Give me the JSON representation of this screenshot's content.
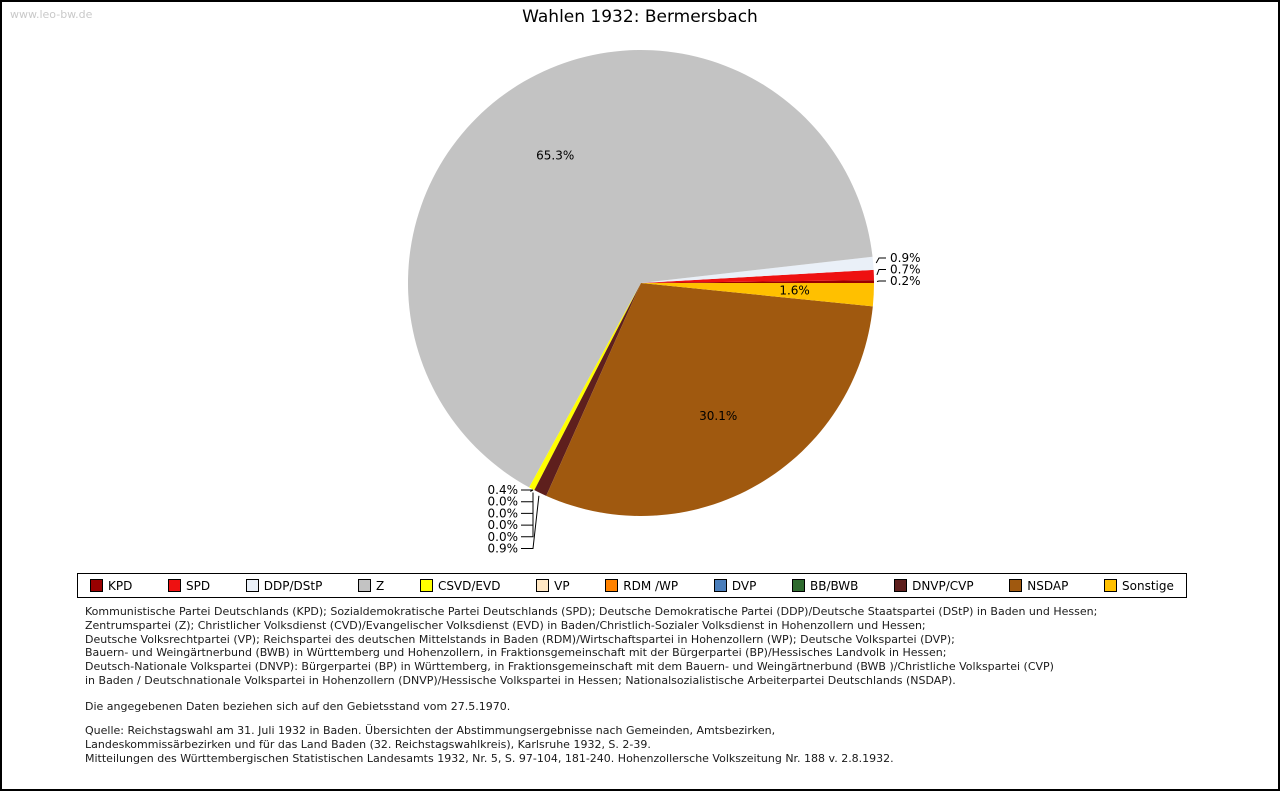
{
  "page": {
    "watermark": "www.leo-bw.de"
  },
  "chart_data": {
    "type": "pie",
    "title": "Wahlen 1932: Bermersbach",
    "unit": "%",
    "start_angle_deg": 0,
    "direction": "counterclockwise",
    "legend_position": "bottom",
    "slices": [
      {
        "key": "kpd",
        "label": "KPD",
        "value": 0.2,
        "color": "#990000",
        "callout": "right"
      },
      {
        "key": "spd",
        "label": "SPD",
        "value": 0.7,
        "color": "#ee1111",
        "callout": "right"
      },
      {
        "key": "ddp-dstp",
        "label": "DDP/DStP",
        "value": 0.9,
        "color": "#eaf0f8",
        "callout": "right"
      },
      {
        "key": "z",
        "label": "Z",
        "value": 65.3,
        "color": "#c3c3c3",
        "callout": "inside"
      },
      {
        "key": "csvd-evd",
        "label": "CSVD/EVD",
        "value": 0.4,
        "color": "#ffff00",
        "callout": "left"
      },
      {
        "key": "vp",
        "label": "VP",
        "value": 0.0,
        "color": "#ffe7c4",
        "callout": "left"
      },
      {
        "key": "rdm-wp",
        "label": "RDM /WP",
        "value": 0.0,
        "color": "#ff8200",
        "callout": "left"
      },
      {
        "key": "dvp",
        "label": "DVP",
        "value": 0.0,
        "color": "#4a7ebb",
        "callout": "left"
      },
      {
        "key": "bb-bwb",
        "label": "BB/BWB",
        "value": 0.0,
        "color": "#2f6b2f",
        "callout": "left"
      },
      {
        "key": "dnvp-cvp",
        "label": "DNVP/CVP",
        "value": 0.9,
        "color": "#5e1f1d",
        "callout": "left"
      },
      {
        "key": "nsdap",
        "label": "NSDAP",
        "value": 30.1,
        "color": "#a0590f",
        "callout": "inside"
      },
      {
        "key": "sonstige",
        "label": "Sonstige",
        "value": 1.6,
        "color": "#ffc000",
        "callout": "inside"
      }
    ]
  },
  "notes": {
    "party_explanations": [
      "Kommunistische Partei Deutschlands (KPD); Sozialdemokratische Partei Deutschlands (SPD); Deutsche Demokratische Partei (DDP)/Deutsche Staatspartei (DStP) in Baden und Hessen;",
      "Zentrumspartei (Z); Christlicher Volksdienst (CVD)/Evangelischer Volksdienst (EVD) in Baden/Christlich-Sozialer Volksdienst in Hohenzollern und Hessen;",
      "Deutsche Volksrechtpartei (VP); Reichspartei des deutschen Mittelstands in Baden (RDM)/Wirtschaftspartei in Hohenzollern (WP); Deutsche Volkspartei (DVP);",
      "Bauern- und Weingärtnerbund (BWB) in Württemberg und Hohenzollern, in Fraktionsgemeinschaft mit der Bürgerpartei (BP)/Hessisches Landvolk in Hessen;",
      "Deutsch-Nationale Volkspartei (DNVP): Bürgerpartei (BP) in Württemberg, in Fraktionsgemeinschaft mit dem Bauern- und Weingärtnerbund (BWB )/Christliche Volkspartei (CVP)",
      "in Baden / Deutschnationale Volkspartei in Hohenzollern (DNVP)/Hessische Volkspartei in Hessen; Nationalsozialistische Arbeiterpartei Deutschlands (NSDAP)."
    ],
    "territory_note": "Die angegebenen Daten beziehen sich auf den Gebietsstand vom 27.5.1970.",
    "source_lines": [
      "Quelle: Reichstagswahl am 31. Juli 1932 in Baden. Übersichten der Abstimmungsergebnisse nach Gemeinden, Amtsbezirken,",
      "Landeskommissärbezirken und für das Land Baden (32. Reichstagswahlkreis), Karlsruhe 1932, S. 2-39.",
      "Mitteilungen des Württembergischen Statistischen Landesamts 1932, Nr. 5, S. 97-104, 181-240. Hohenzollersche Volkszeitung Nr. 188 v. 2.8.1932."
    ]
  }
}
